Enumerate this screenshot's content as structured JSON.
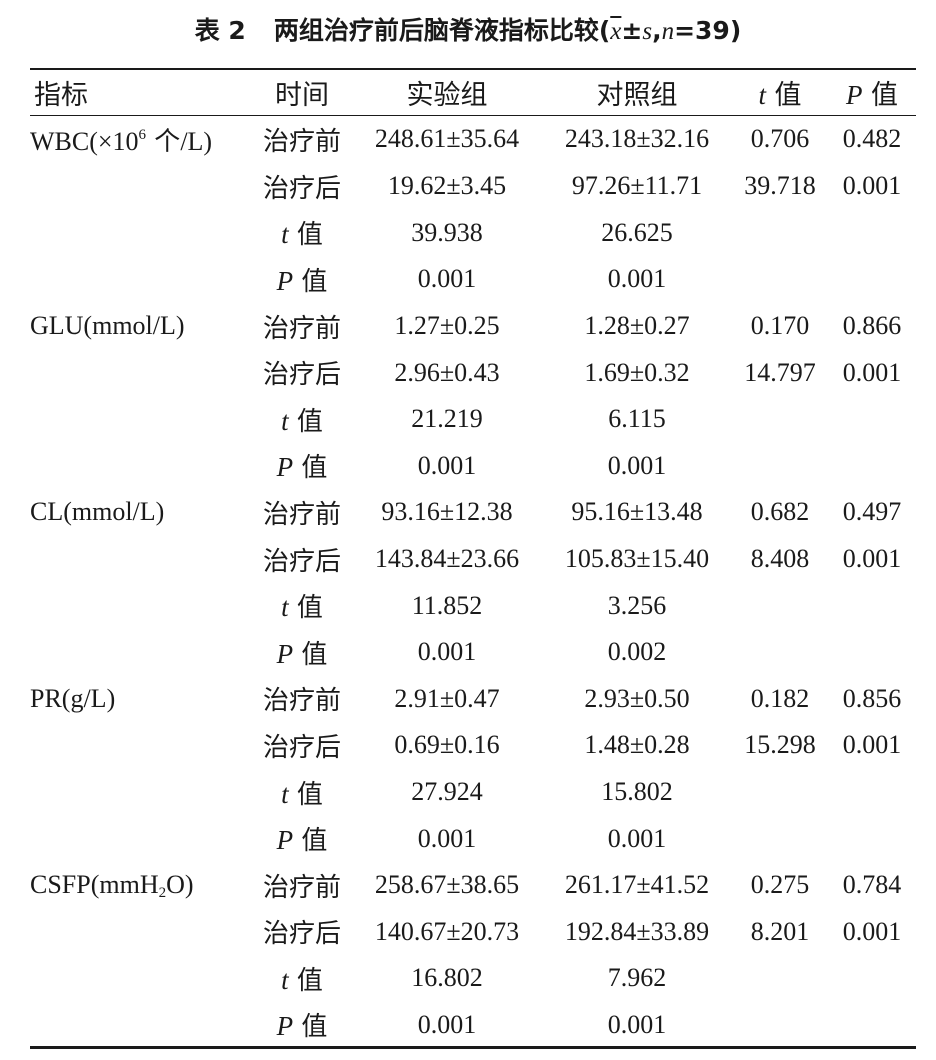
{
  "caption": {
    "number": "表 2",
    "title": "两组治疗前后脑脊液指标比较",
    "open": "(",
    "xbar": "x",
    "pm": "±",
    "s": "s",
    "comma": ",",
    "n": "n",
    "n_value": "=39",
    "close": ")"
  },
  "header": {
    "indicator": "指标",
    "time": "时间",
    "experimental": "实验组",
    "control": "对照组",
    "t_sym": "t",
    "t_text": " 值",
    "p_sym": "P",
    "p_text": " 值"
  },
  "groups": [
    {
      "name_pre": "WBC(×10",
      "name_sup": "6",
      "name_cjk": " 个",
      "name_post": "/L)",
      "rows": [
        {
          "time": "治疗前",
          "exp": "248.61±35.64",
          "ctrl": "243.18±32.16",
          "t": "0.706",
          "p": "0.482"
        },
        {
          "time": "治疗后",
          "exp": "19.62±3.45",
          "ctrl": "97.26±11.71",
          "t": "39.718",
          "p": "0.001"
        },
        {
          "time_sym": "t",
          "time_text": " 值",
          "exp": "39.938",
          "ctrl": "26.625"
        },
        {
          "time_sym": "P",
          "time_text": " 值",
          "exp": "0.001",
          "ctrl": "0.001"
        }
      ]
    },
    {
      "name": "GLU(mmol/L)",
      "rows": [
        {
          "time": "治疗前",
          "exp": "1.27±0.25",
          "ctrl": "1.28±0.27",
          "t": "0.170",
          "p": "0.866"
        },
        {
          "time": "治疗后",
          "exp": "2.96±0.43",
          "ctrl": "1.69±0.32",
          "t": "14.797",
          "p": "0.001"
        },
        {
          "time_sym": "t",
          "time_text": " 值",
          "exp": "21.219",
          "ctrl": "6.115"
        },
        {
          "time_sym": "P",
          "time_text": " 值",
          "exp": "0.001",
          "ctrl": "0.001"
        }
      ]
    },
    {
      "name": "CL(mmol/L)",
      "rows": [
        {
          "time": "治疗前",
          "exp": "93.16±12.38",
          "ctrl": "95.16±13.48",
          "t": "0.682",
          "p": "0.497"
        },
        {
          "time": "治疗后",
          "exp": "143.84±23.66",
          "ctrl": "105.83±15.40",
          "t": "8.408",
          "p": "0.001"
        },
        {
          "time_sym": "t",
          "time_text": " 值",
          "exp": "11.852",
          "ctrl": "3.256"
        },
        {
          "time_sym": "P",
          "time_text": " 值",
          "exp": "0.001",
          "ctrl": "0.002"
        }
      ]
    },
    {
      "name": "PR(g/L)",
      "rows": [
        {
          "time": "治疗前",
          "exp": "2.91±0.47",
          "ctrl": "2.93±0.50",
          "t": "0.182",
          "p": "0.856"
        },
        {
          "time": "治疗后",
          "exp": "0.69±0.16",
          "ctrl": "1.48±0.28",
          "t": "15.298",
          "p": "0.001"
        },
        {
          "time_sym": "t",
          "time_text": " 值",
          "exp": "27.924",
          "ctrl": "15.802"
        },
        {
          "time_sym": "P",
          "time_text": " 值",
          "exp": "0.001",
          "ctrl": "0.001"
        }
      ]
    },
    {
      "name_pre": "CSFP(mmH",
      "name_sub": "2",
      "name_post": "O)",
      "rows": [
        {
          "time": "治疗前",
          "exp": "258.67±38.65",
          "ctrl": "261.17±41.52",
          "t": "0.275",
          "p": "0.784"
        },
        {
          "time": "治疗后",
          "exp": "140.67±20.73",
          "ctrl": "192.84±33.89",
          "t": "8.201",
          "p": "0.001"
        },
        {
          "time_sym": "t",
          "time_text": " 值",
          "exp": "16.802",
          "ctrl": "7.962"
        },
        {
          "time_sym": "P",
          "time_text": " 值",
          "exp": "0.001",
          "ctrl": "0.001"
        }
      ]
    }
  ]
}
